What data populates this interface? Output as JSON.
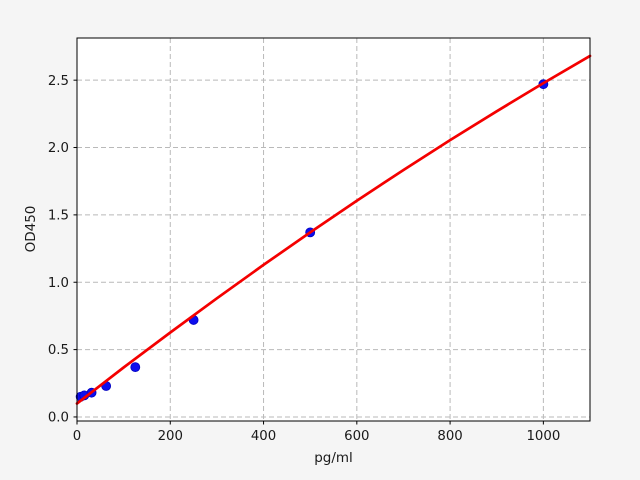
{
  "figure": {
    "background": "#f5f5f5",
    "plot_background": "#ffffff",
    "spine_color": "#000000",
    "grid_color": "#b9b9b9",
    "tick_color": "#000000",
    "text_color": "#1a1a1a"
  },
  "chart_data": {
    "type": "scatter",
    "title": "",
    "xlabel": "pg/ml",
    "ylabel": "OD450",
    "xlim": [
      0,
      1100
    ],
    "ylim": [
      -0.03,
      2.813
    ],
    "grid": {
      "visible": true,
      "style": "dashed",
      "dash": "5 3"
    },
    "legend": "none",
    "xticks": {
      "values": [
        0,
        200,
        400,
        600,
        800,
        1000
      ],
      "labels": [
        "0",
        "200",
        "400",
        "600",
        "800",
        "1000"
      ]
    },
    "yticks": {
      "values": [
        0.0,
        0.5,
        1.0,
        1.5,
        2.0,
        2.5
      ],
      "labels": [
        "0.0",
        "0.5",
        "1.0",
        "1.5",
        "2.0",
        "2.5"
      ]
    },
    "series": [
      {
        "name": "standard-points",
        "type": "scatter",
        "color": "#0d0dee",
        "edge_color": "#0000c0",
        "marker": "circle",
        "marker_radius": 4.5,
        "x": [
          7.8,
          15.6,
          31.25,
          62.5,
          125,
          250,
          500,
          1000
        ],
        "y": [
          0.15,
          0.16,
          0.18,
          0.23,
          0.37,
          0.72,
          1.37,
          2.47
        ]
      },
      {
        "name": "fit-curve",
        "type": "line",
        "color": "#f40000",
        "width": 2.7,
        "x": [
          0,
          100,
          200,
          300,
          400,
          500,
          600,
          700,
          800,
          900,
          1000,
          1100
        ],
        "y": [
          0.1,
          0.367,
          0.627,
          0.881,
          1.129,
          1.37,
          1.605,
          1.833,
          2.055,
          2.269,
          2.478,
          2.68
        ]
      }
    ]
  }
}
